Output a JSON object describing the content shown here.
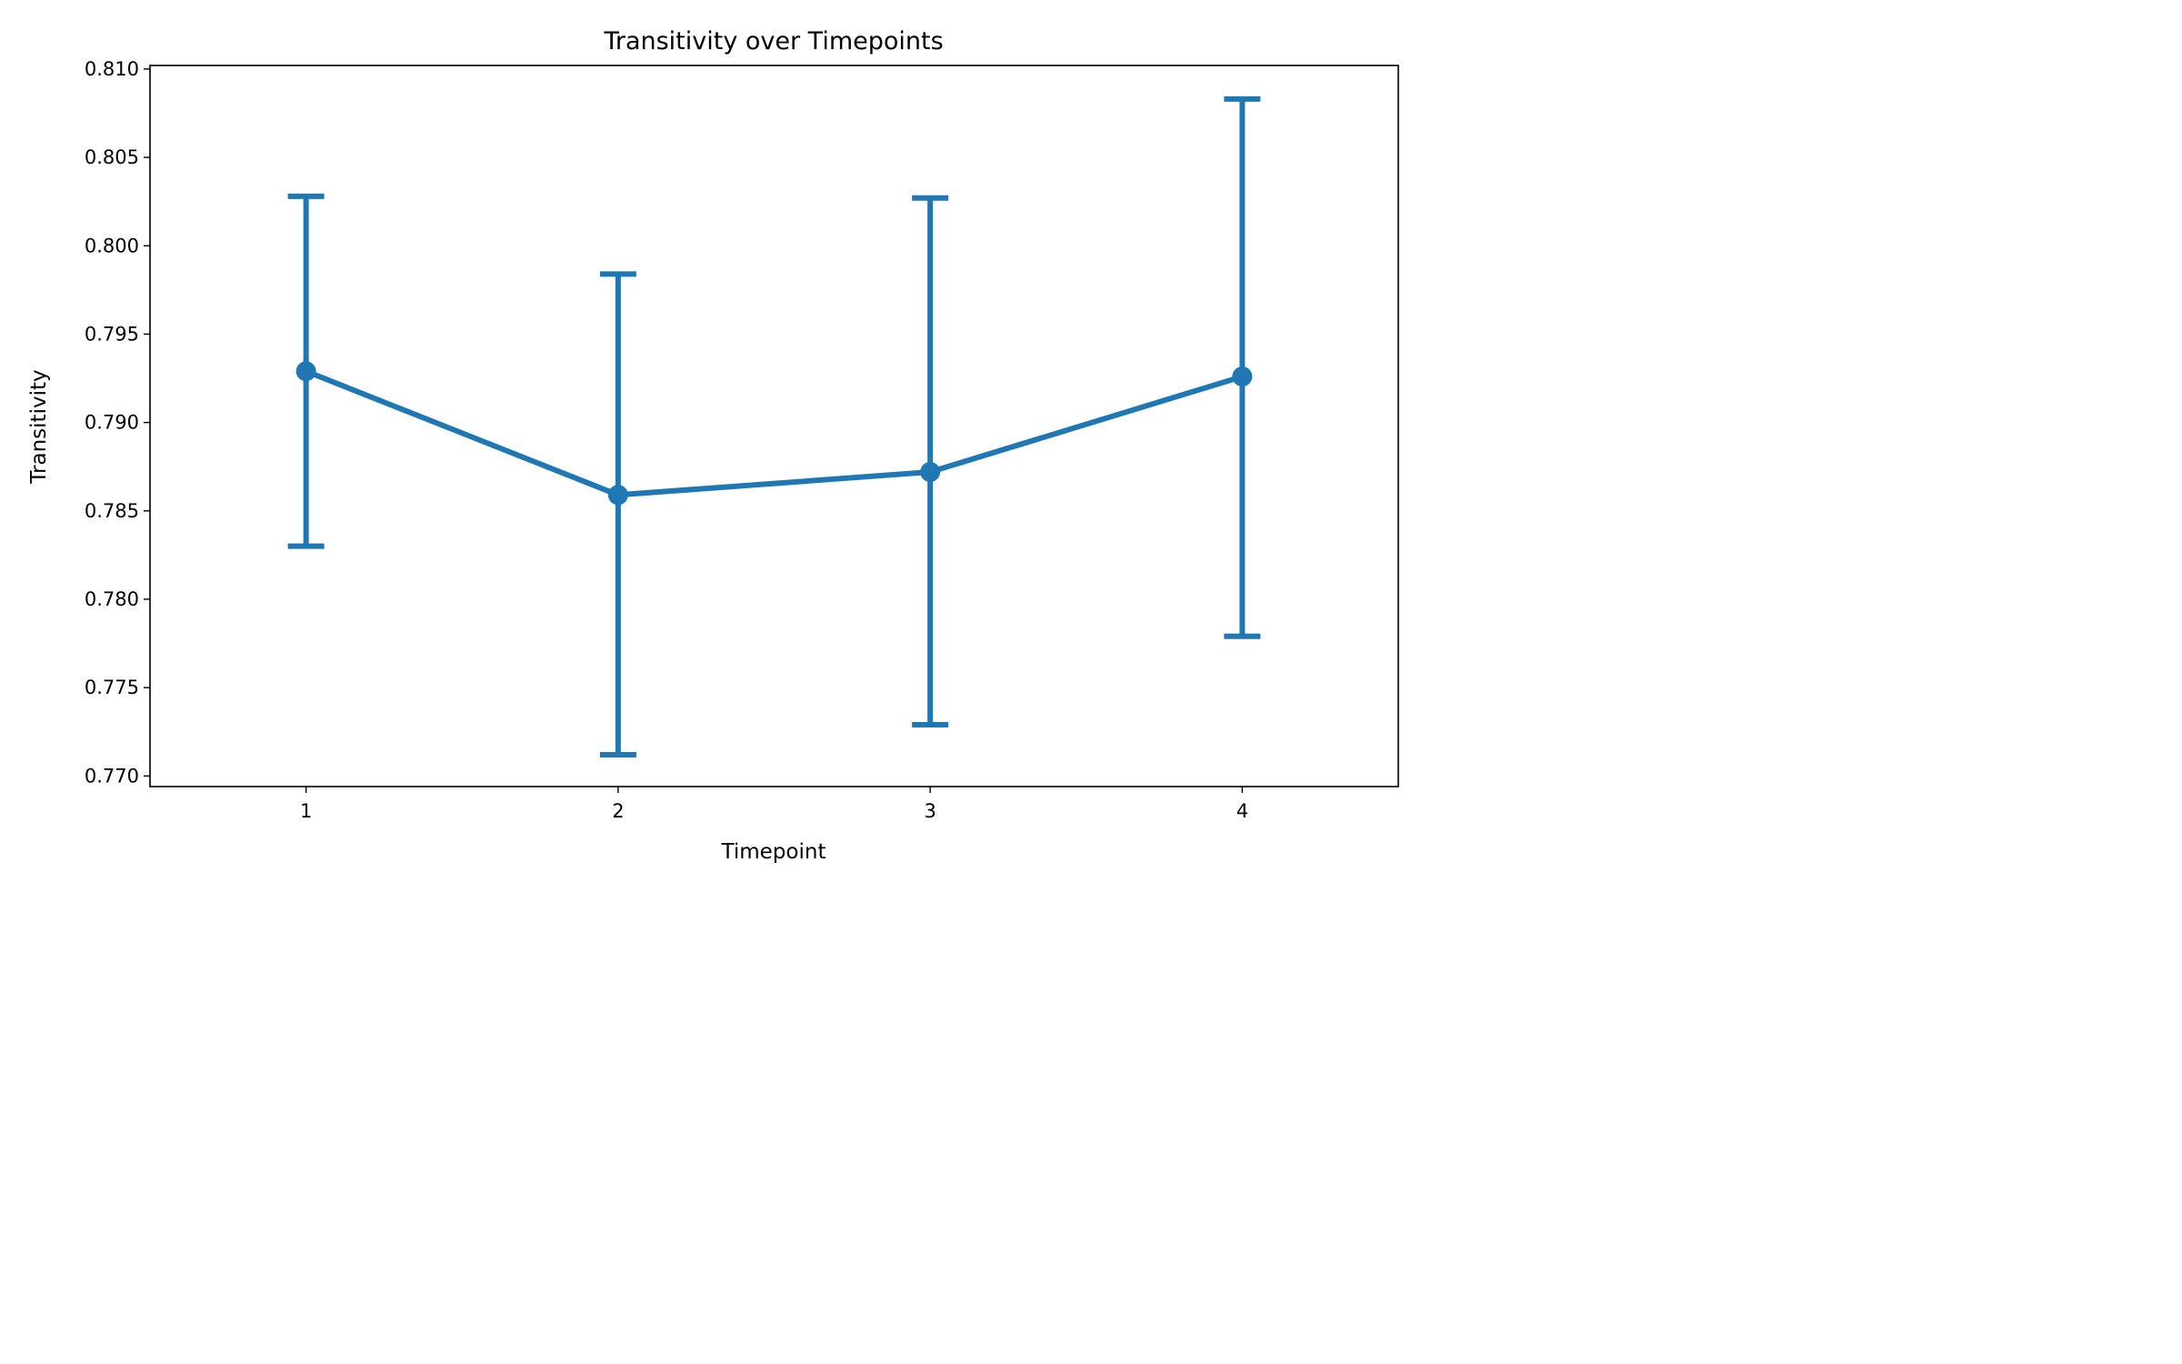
{
  "chart_data": {
    "type": "line",
    "title": "Transitivity over Timepoints",
    "xlabel": "Timepoint",
    "ylabel": "Transitivity",
    "x": [
      1,
      2,
      3,
      4
    ],
    "xticks": [
      "1",
      "2",
      "3",
      "4"
    ],
    "xlim": [
      0.5,
      4.5
    ],
    "ylim": [
      0.7694,
      0.8102
    ],
    "yticks": [
      "0.770",
      "0.775",
      "0.780",
      "0.785",
      "0.790",
      "0.795",
      "0.800",
      "0.805",
      "0.810"
    ],
    "series": [
      {
        "values": [
          0.7929,
          0.7859,
          0.7872,
          0.7926
        ],
        "error_low": [
          0.783,
          0.7712,
          0.7729,
          0.7779
        ],
        "error_high": [
          0.8028,
          0.7984,
          0.8027,
          0.8083
        ]
      }
    ],
    "grid": false,
    "color": "#1f77b4"
  }
}
